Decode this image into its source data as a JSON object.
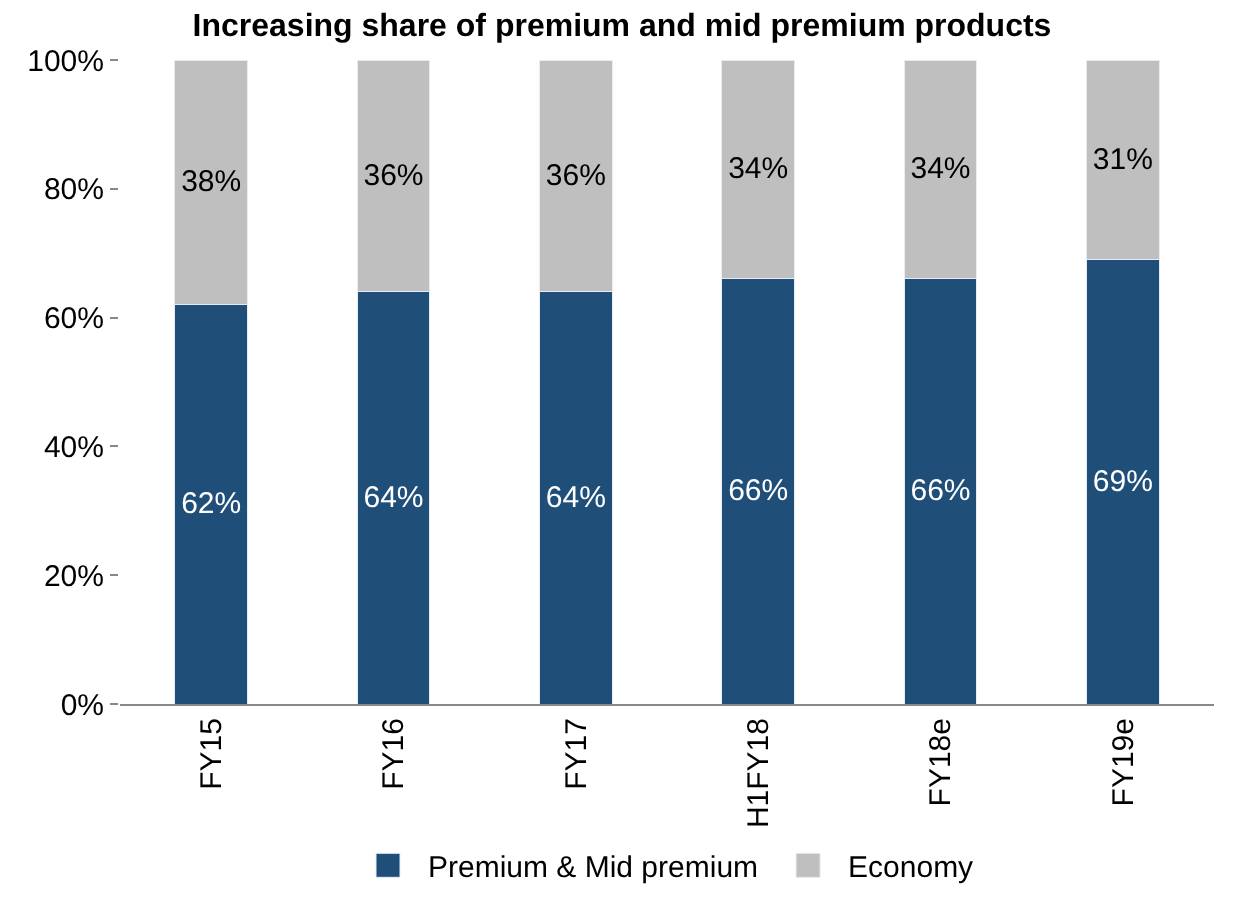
{
  "chart_data": {
    "type": "bar",
    "stacked": true,
    "title": "Increasing share of premium and mid premium products",
    "categories": [
      "FY15",
      "FY16",
      "FY17",
      "H1FY18",
      "FY18e",
      "FY19e"
    ],
    "series": [
      {
        "name": "Premium & Mid premium",
        "color": "#1f4e79",
        "values": [
          62,
          64,
          64,
          66,
          66,
          69
        ],
        "value_labels": [
          "62%",
          "64%",
          "64%",
          "66%",
          "66%",
          "69%"
        ]
      },
      {
        "name": "Economy",
        "color": "#bfbfbf",
        "values": [
          38,
          36,
          36,
          34,
          34,
          31
        ],
        "value_labels": [
          "38%",
          "36%",
          "36%",
          "34%",
          "34%",
          "31%"
        ]
      }
    ],
    "ylim": [
      0,
      100
    ],
    "yticks": [
      {
        "value": 0,
        "label": "0%"
      },
      {
        "value": 20,
        "label": "20%"
      },
      {
        "value": 40,
        "label": "40%"
      },
      {
        "value": 60,
        "label": "60%"
      },
      {
        "value": 80,
        "label": "80%"
      },
      {
        "value": 100,
        "label": "100%"
      }
    ],
    "legend": "bottom"
  }
}
